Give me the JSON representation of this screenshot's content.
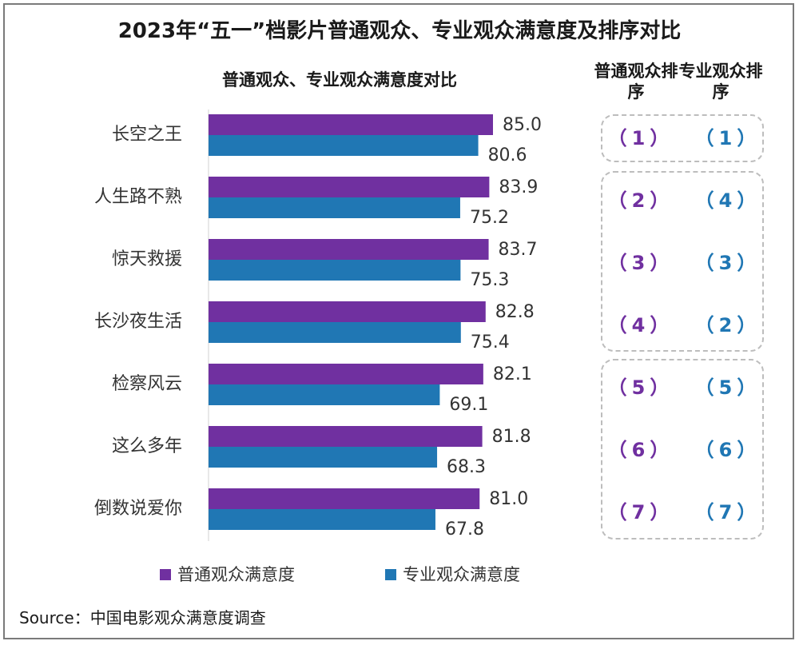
{
  "title": "2023年“五一”档影片普通观众、专业观众满意度及排序对比",
  "source": "Source：中国电影观众满意度调查",
  "colors": {
    "general": "#7030a0",
    "professional": "#2077b4"
  },
  "rank_headers": {
    "general": "普通观众排序",
    "professional": "专业观众排序"
  },
  "chart_data": {
    "type": "bar",
    "orientation": "horizontal",
    "title": "普通观众、专业观众满意度对比",
    "categories": [
      "长空之王",
      "人生路不熟",
      "惊天救援",
      "长沙夜生活",
      "检察风云",
      "这么多年",
      "倒数说爱你"
    ],
    "series": [
      {
        "name": "普通观众满意度",
        "values": [
          85.0,
          83.9,
          83.7,
          82.8,
          82.1,
          81.8,
          81.0
        ]
      },
      {
        "name": "专业观众满意度",
        "values": [
          80.6,
          75.2,
          75.3,
          75.4,
          69.1,
          68.3,
          67.8
        ]
      }
    ],
    "xlim": [
      0,
      86
    ],
    "legend": "bottom",
    "grid": false
  },
  "ranks": {
    "general": [
      "（1）",
      "（2）",
      "（3）",
      "（4）",
      "（5）",
      "（6）",
      "（7）"
    ],
    "professional": [
      "（1）",
      "（4）",
      "（3）",
      "（2）",
      "（5）",
      "（6）",
      "（7）"
    ]
  }
}
